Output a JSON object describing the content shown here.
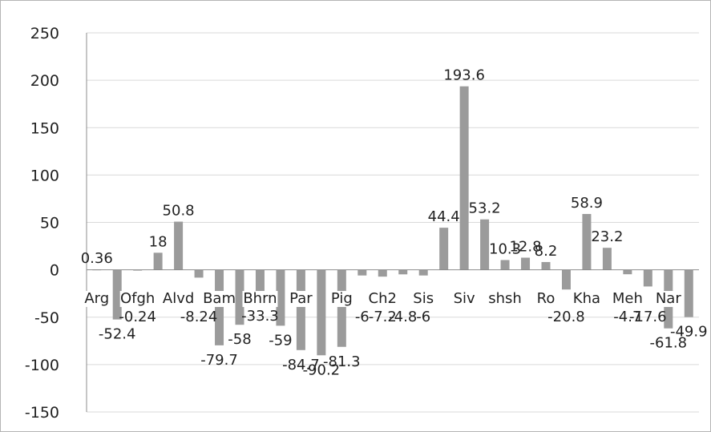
{
  "chart_data": {
    "type": "bar",
    "title": "",
    "xlabel": "",
    "ylabel": "",
    "ylim": [
      -150,
      250
    ],
    "yticks": [
      250,
      200,
      150,
      100,
      50,
      0,
      -50,
      -100,
      -150
    ],
    "grid": true,
    "legend": "none",
    "categories": [
      "Arg",
      "",
      "Ofgh",
      "",
      "Alvd",
      "",
      "Bam",
      "",
      "Bhrn",
      "",
      "Par",
      "",
      "Pig",
      "",
      "Ch2",
      "",
      "Sis",
      "",
      "Siv",
      "",
      "shsh",
      "",
      "Ro",
      "",
      "Kha",
      "",
      "Meh",
      "",
      "Nar",
      ""
    ],
    "values": [
      0.36,
      -52.4,
      -0.24,
      18,
      50.8,
      -8.24,
      -79.7,
      -58,
      -33.3,
      -59,
      -84.7,
      -90.2,
      -81.3,
      -6,
      -7.2,
      -4.8,
      -6,
      44.4,
      193.6,
      53.2,
      10.3,
      12.8,
      8.2,
      -20.8,
      58.9,
      23.2,
      -4.7,
      -17.6,
      -61.8,
      -49.9
    ],
    "data_labels": [
      "0.36",
      "-52.4",
      "-0.24",
      "18",
      "50.8",
      "-8.24",
      "-79.7",
      "-58",
      "-33.3",
      "-59",
      "-84.7",
      "-90.2",
      "-81.3",
      "-6",
      "-7.2",
      "-4.8",
      "-6",
      "44.4",
      "193.6",
      "53.2",
      "10.3",
      "12.8",
      "8.2",
      "-20.8",
      "58.9",
      "23.2",
      "-4.7",
      "-17.6",
      "-61.8",
      "-49.9"
    ],
    "colors": {
      "bar": "#9b9b9b",
      "grid": "#d9d9d9",
      "axis": "#8c8c8c",
      "text": "#222222"
    }
  }
}
